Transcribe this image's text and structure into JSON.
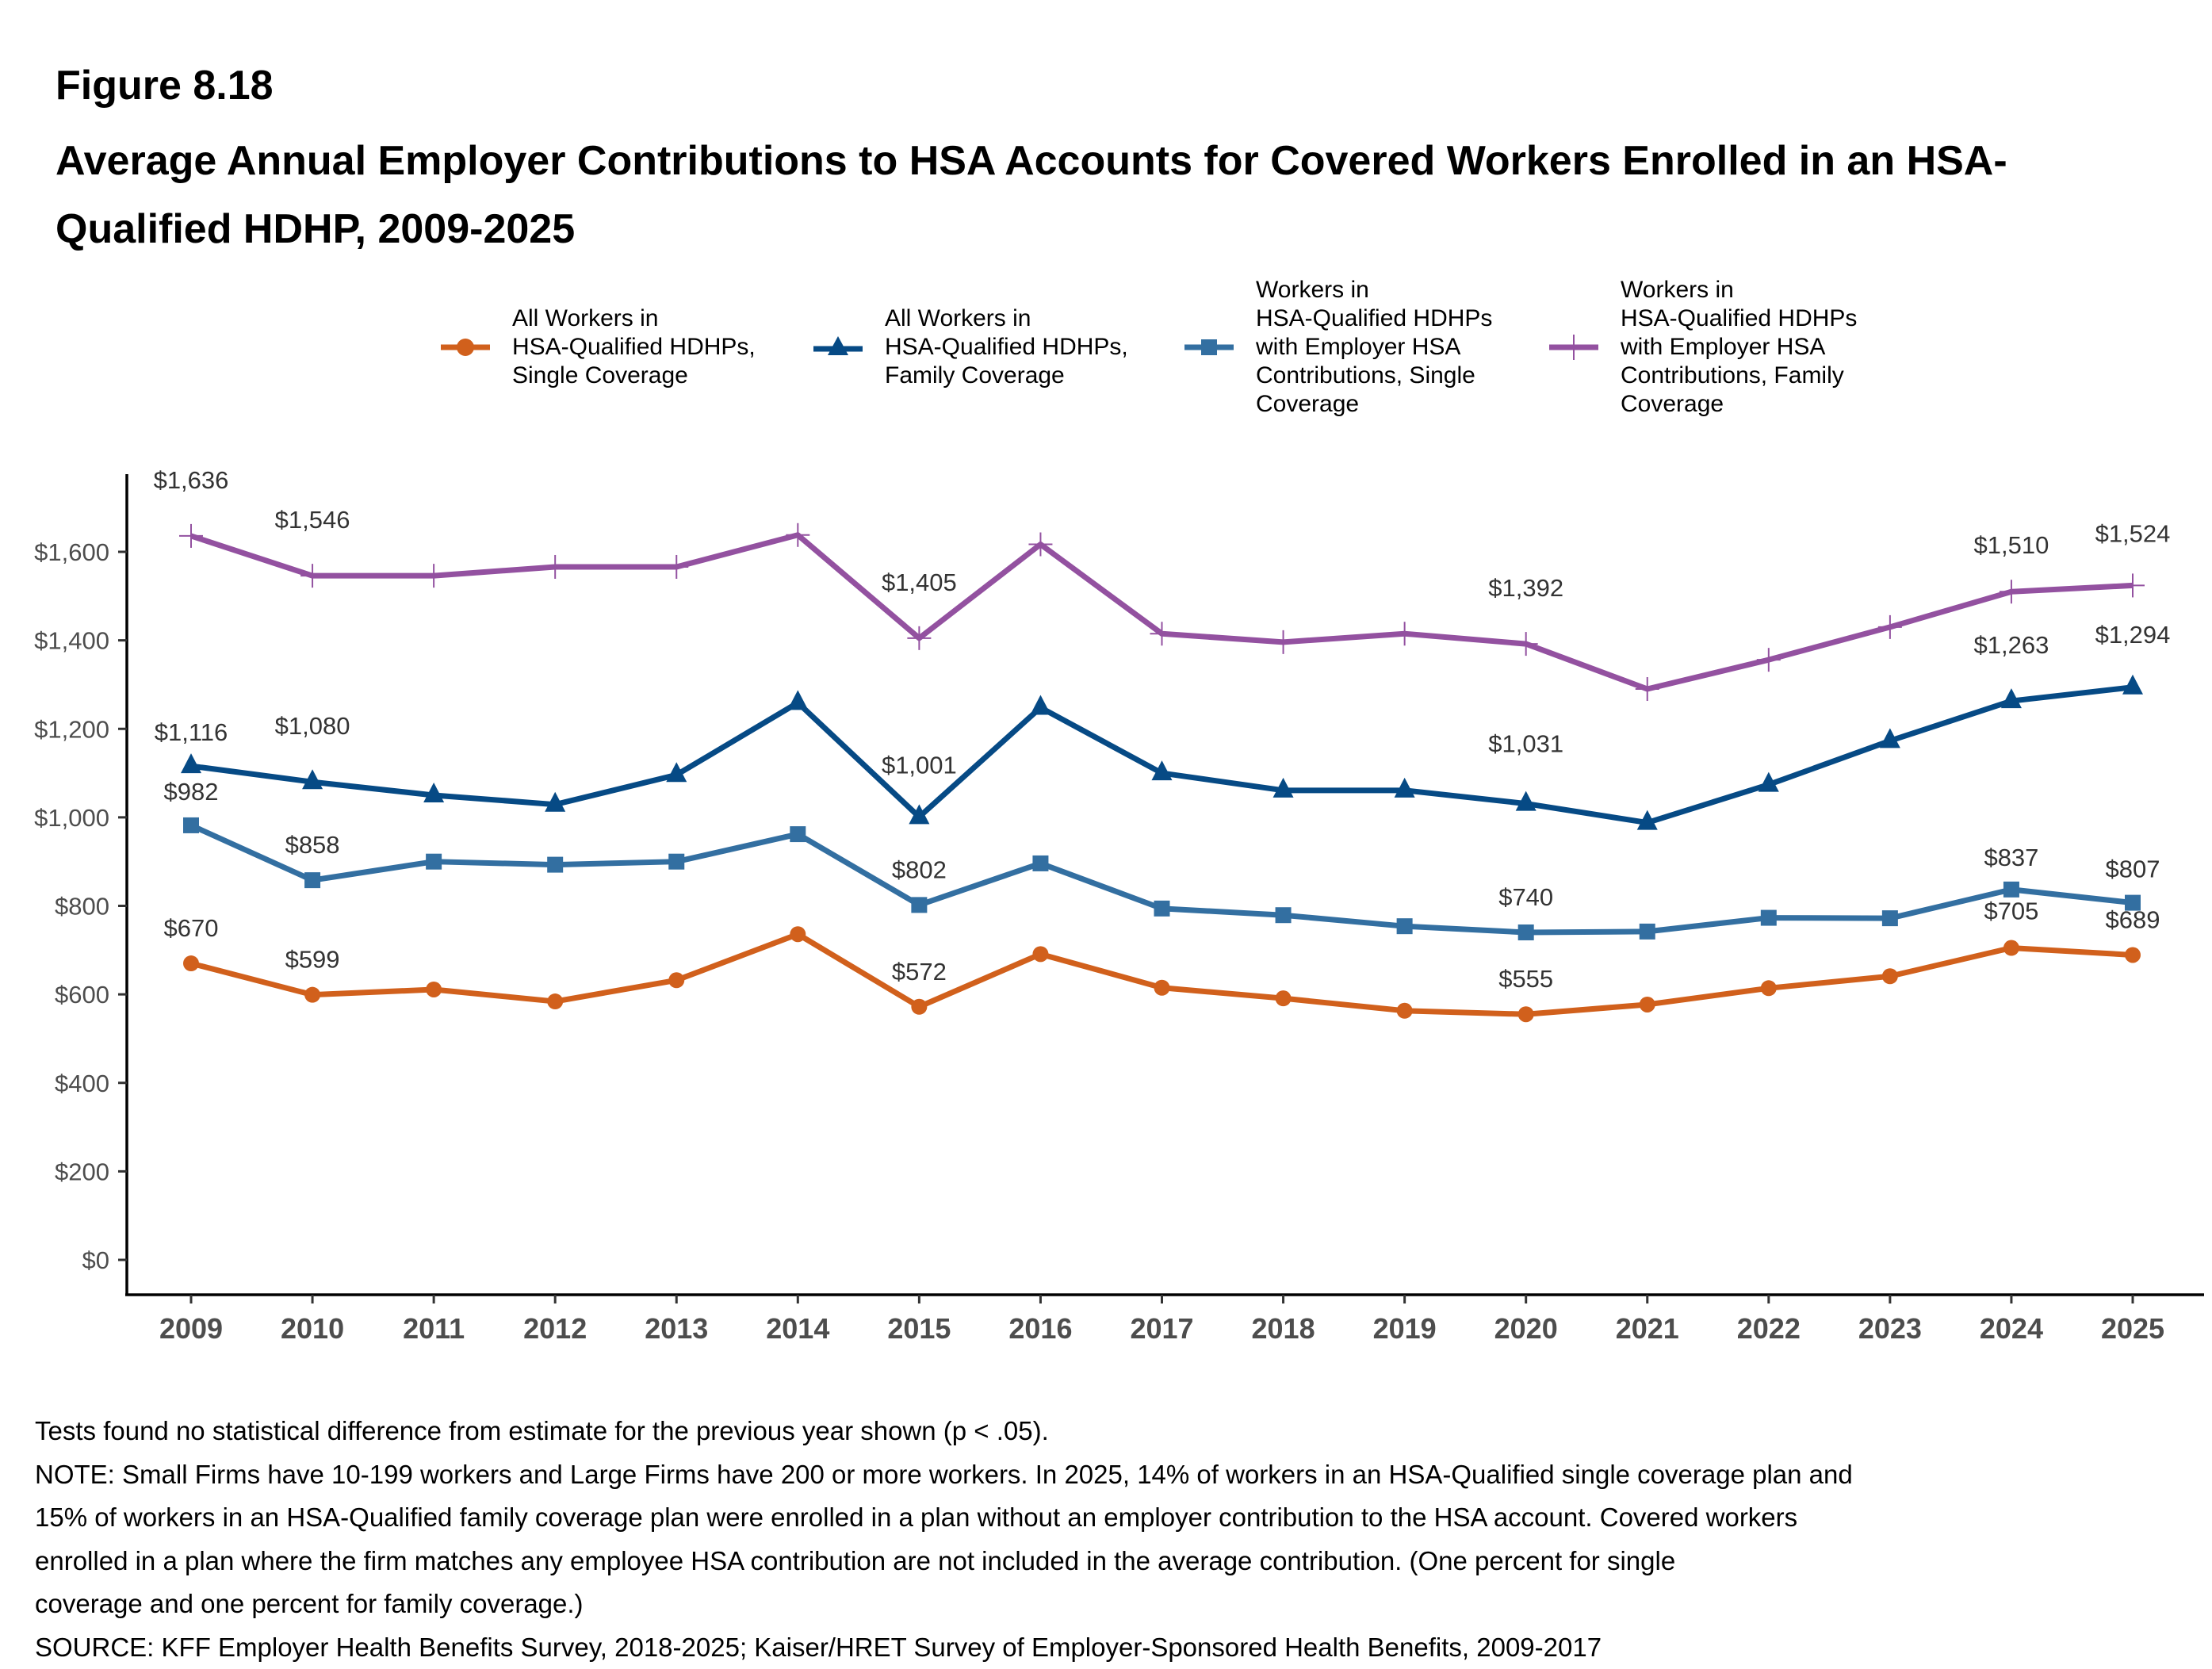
{
  "figure_number": "Figure 8.18",
  "title": "Average Annual Employer Contributions to HSA Accounts for Covered Workers Enrolled in an HSA-Qualified HDHP, 2009-2025",
  "footer": {
    "lines": [
      "Tests found no statistical difference from estimate for the previous year shown (p < .05).",
      "NOTE: Small Firms have 10-199 workers and Large Firms have 200 or more workers. In 2025, 14% of workers in an HSA-Qualified single coverage plan and",
      "15% of workers in an HSA-Qualified family coverage plan were enrolled in a plan without an employer contribution to the HSA account. Covered workers",
      "enrolled in a plan where the firm matches any employee HSA contribution are not included in the average contribution. (One percent for single",
      "coverage and one percent for family coverage.)",
      "SOURCE: KFF Employer Health Benefits Survey, 2018-2025; Kaiser/HRET Survey of Employer-Sponsored Health Benefits, 2009-2017"
    ]
  },
  "chart_data": {
    "type": "line",
    "title": "Average Annual Employer Contributions to HSA Accounts for Covered Workers Enrolled in an HSA-Qualified HDHP, 2009-2025",
    "xlabel": "",
    "ylabel": "",
    "x": [
      "2009",
      "2010",
      "2011",
      "2012",
      "2013",
      "2014",
      "2015",
      "2016",
      "2017",
      "2018",
      "2019",
      "2020",
      "2021",
      "2022",
      "2023",
      "2024",
      "2025"
    ],
    "ylim": [
      -80,
      1760
    ],
    "yticks": [
      0,
      200,
      400,
      600,
      800,
      1000,
      1200,
      1400,
      1600
    ],
    "ytick_labels": [
      "$0",
      "$200",
      "$400",
      "$600",
      "$800",
      "$1,000",
      "$1,200",
      "$1,400",
      "$1,600"
    ],
    "grid": false,
    "legend_position": "top",
    "series": [
      {
        "name": "All Workers in HSA-Qualified HDHPs, Single Coverage",
        "legend_text": "All Workers in\nHSA-Qualified HDHPs,\nSingle Coverage",
        "color": "#d1601c",
        "marker": "circle",
        "values": [
          670,
          599,
          611,
          584,
          632,
          736,
          572,
          691,
          615,
          591,
          563,
          555,
          577,
          614,
          641,
          705,
          689
        ],
        "labels": {
          "2009": "$670",
          "2010": "$599",
          "2015": "$572",
          "2020": "$555",
          "2024": "$705",
          "2025": "$689"
        }
      },
      {
        "name": "All Workers in HSA-Qualified HDHPs, Family Coverage",
        "legend_text": "All Workers in\nHSA-Qualified HDHPs,\nFamily Coverage",
        "color": "#064a85",
        "marker": "triangle",
        "values": [
          1116,
          1080,
          1050,
          1029,
          1096,
          1259,
          1001,
          1248,
          1100,
          1061,
          1061,
          1031,
          988,
          1074,
          1173,
          1263,
          1294
        ],
        "labels": {
          "2009": "$1,116",
          "2010": "$1,080",
          "2015": "$1,001",
          "2020": "$1,031",
          "2024": "$1,263",
          "2025": "$1,294"
        }
      },
      {
        "name": "Workers in HSA-Qualified HDHPs with Employer HSA Contributions, Single Coverage",
        "legend_text": "Workers in\nHSA-Qualified HDHPs\nwith Employer HSA\nContributions, Single\nCoverage",
        "color": "#336fa1",
        "marker": "square",
        "values": [
          982,
          858,
          900,
          893,
          900,
          962,
          802,
          896,
          794,
          779,
          754,
          740,
          742,
          773,
          772,
          837,
          807
        ],
        "labels": {
          "2009": "$982",
          "2010": "$858",
          "2015": "$802",
          "2020": "$740",
          "2024": "$837",
          "2025": "$807"
        }
      },
      {
        "name": "Workers in HSA-Qualified HDHPs with Employer HSA Contributions, Family Coverage",
        "legend_text": "Workers in\nHSA-Qualified HDHPs\nwith Employer HSA\nContributions, Family\nCoverage",
        "color": "#9351a0",
        "marker": "plus",
        "values": [
          1636,
          1546,
          1546,
          1566,
          1566,
          1638,
          1405,
          1617,
          1415,
          1396,
          1415,
          1392,
          1290,
          1356,
          1430,
          1510,
          1524
        ],
        "labels": {
          "2009": "$1,636",
          "2010": "$1,546",
          "2015": "$1,405",
          "2020": "$1,392",
          "2024": "$1,510",
          "2025": "$1,524"
        }
      }
    ]
  }
}
